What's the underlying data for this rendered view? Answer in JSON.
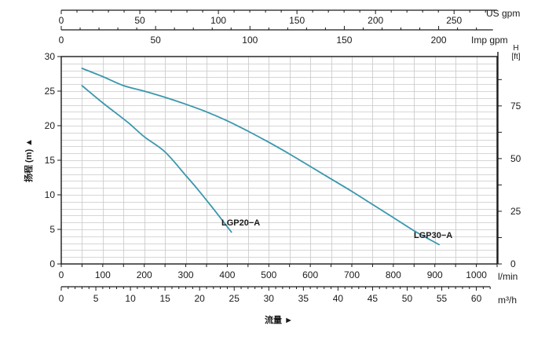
{
  "chart_data": {
    "type": "line",
    "ylabel": "扬程 (m) ▲",
    "xlabel": "流量 ►",
    "y_left": {
      "ylim": [
        0,
        30
      ],
      "ticks": [
        0,
        5,
        10,
        15,
        20,
        25,
        30
      ]
    },
    "y_right": {
      "unit_top": "H",
      "unit_bottom": "[ft]",
      "ticks": [
        0,
        25,
        50,
        75
      ],
      "minor_step": 12.5
    },
    "x_lmin": {
      "unit": "l/min",
      "xlim": [
        0,
        1050
      ],
      "ticks": [
        0,
        100,
        200,
        300,
        400,
        500,
        600,
        700,
        800,
        900,
        1000
      ]
    },
    "x_m3h": {
      "unit": "m³/h",
      "ticks": [
        0,
        5,
        10,
        15,
        20,
        25,
        30,
        35,
        40,
        45,
        50,
        55,
        60
      ]
    },
    "x_usgpm": {
      "unit": "US gpm",
      "ticks": [
        0,
        50,
        100,
        150,
        200,
        250
      ]
    },
    "x_impgpm": {
      "unit": "Imp gpm",
      "ticks": [
        0,
        50,
        100,
        150,
        200
      ]
    },
    "grid": true,
    "series": [
      {
        "name": "LGP20−A",
        "color": "#3a97ad",
        "x": [
          50,
          100,
          160,
          200,
          250,
          300,
          330,
          370,
          410
        ],
        "y": [
          25.8,
          23.3,
          20.5,
          18.4,
          16.2,
          12.8,
          10.7,
          7.7,
          4.6
        ]
      },
      {
        "name": "LGP30−A",
        "color": "#3a97ad",
        "x": [
          50,
          100,
          150,
          200,
          250,
          300,
          350,
          400,
          450,
          500,
          550,
          600,
          650,
          700,
          750,
          800,
          850,
          910
        ],
        "y": [
          28.3,
          27.1,
          25.8,
          25.0,
          24.1,
          23.1,
          22.0,
          20.7,
          19.2,
          17.6,
          15.9,
          14.1,
          12.3,
          10.5,
          8.6,
          6.7,
          4.8,
          2.8
        ]
      }
    ]
  }
}
